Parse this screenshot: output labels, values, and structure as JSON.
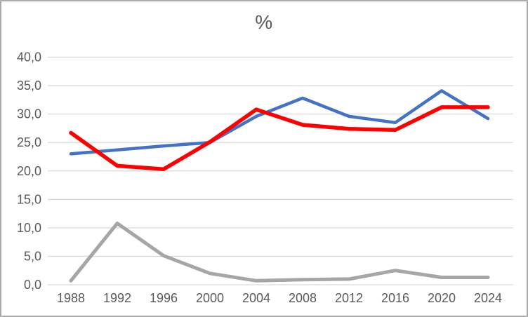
{
  "window": {
    "background_color": "#ffffff",
    "border_color": "#ababab"
  },
  "chart_data": {
    "type": "line",
    "title": "%",
    "categories": [
      "1988",
      "1992",
      "1996",
      "2000",
      "2004",
      "2008",
      "2012",
      "2016",
      "2020",
      "2024"
    ],
    "series": [
      {
        "name": "blue",
        "color": "#4472c4",
        "values": [
          23.0,
          23.7,
          24.4,
          25.0,
          29.6,
          32.8,
          29.6,
          28.5,
          34.1,
          29.2
        ]
      },
      {
        "name": "red",
        "color": "#ff0000",
        "values": [
          26.7,
          20.9,
          20.3,
          25.1,
          30.8,
          28.1,
          27.4,
          27.2,
          31.2,
          31.2
        ]
      },
      {
        "name": "gray",
        "color": "#a6a6a6",
        "values": [
          0.7,
          10.8,
          5.1,
          2.0,
          0.7,
          0.9,
          1.0,
          2.5,
          1.3,
          1.3
        ]
      }
    ],
    "xlabel": "",
    "ylabel": "",
    "ylim": [
      0,
      40
    ],
    "ytick_interval": 5,
    "ytick_labels": [
      "0,0",
      "5,0",
      "10,0",
      "15,0",
      "20,0",
      "25,0",
      "30,0",
      "35,0",
      "40,0"
    ],
    "grid": true,
    "gridline_color": "#d9d9d9",
    "text_color": "#595959",
    "legend_position": "none"
  }
}
